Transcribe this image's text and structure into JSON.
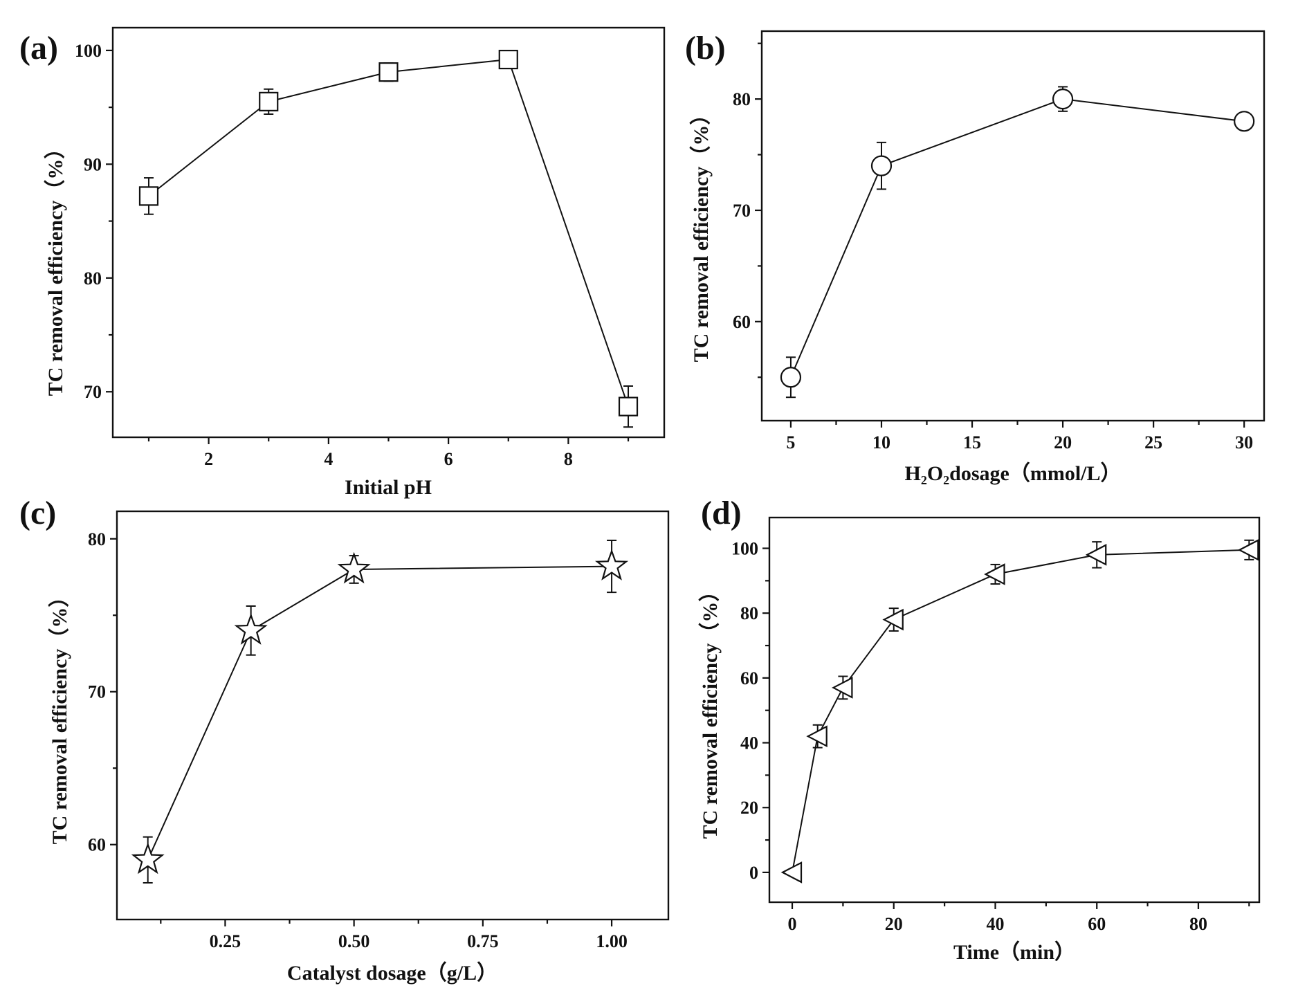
{
  "chart_data": [
    {
      "panel": "(a)",
      "type": "line",
      "xlabel": "Initial pH",
      "ylabel": "TC removal efficiency（%）",
      "xlim": [
        0.4,
        9.6
      ],
      "ylim": [
        66,
        102
      ],
      "xticks": [
        2,
        4,
        6,
        8
      ],
      "yticks": [
        70,
        80,
        90,
        100
      ],
      "marker": "square",
      "series": [
        {
          "name": "TC removal efficiency",
          "x": [
            1,
            3,
            5,
            7,
            9
          ],
          "y": [
            87.2,
            95.5,
            98.1,
            99.2,
            68.7
          ],
          "err": [
            1.6,
            1.1,
            0.8,
            0.7,
            1.8
          ]
        }
      ]
    },
    {
      "panel": "(b)",
      "type": "line",
      "xlabel": "H₂O₂dosage（mmol/L）",
      "ylabel": "TC removal efficiency（%）",
      "xlim": [
        3.4,
        31.1
      ],
      "ylim": [
        51.1,
        86.1
      ],
      "xticks": [
        5,
        10,
        15,
        20,
        25,
        30
      ],
      "yticks": [
        60,
        70,
        80
      ],
      "marker": "circle",
      "series": [
        {
          "name": "TC removal efficiency",
          "x": [
            5,
            10,
            20,
            30
          ],
          "y": [
            55,
            74,
            80,
            78
          ],
          "err": [
            1.8,
            2.1,
            1.1,
            0.7
          ]
        }
      ]
    },
    {
      "panel": "(c)",
      "type": "line",
      "xlabel": "Catalyst dosage（g/L）",
      "ylabel": "TC removal efficiency（%）",
      "xlim": [
        0.04,
        1.11
      ],
      "ylim": [
        55.1,
        81.8
      ],
      "xticks": [
        0.25,
        0.5,
        0.75,
        1.0
      ],
      "xtick_labels": [
        "0.25",
        "0.50",
        "0.75",
        "1.00"
      ],
      "yticks": [
        60,
        70,
        80
      ],
      "marker": "star",
      "series": [
        {
          "name": "TC removal efficiency",
          "x": [
            0.1,
            0.3,
            0.5,
            1.0
          ],
          "y": [
            59,
            74,
            78,
            78.2
          ],
          "err": [
            1.5,
            1.6,
            0.9,
            1.7
          ]
        }
      ]
    },
    {
      "panel": "(d)",
      "type": "line",
      "xlabel": "Time（min）",
      "ylabel": "TC removal efficiency（%）",
      "xlim": [
        -4.5,
        92
      ],
      "ylim": [
        -9.2,
        109.5
      ],
      "xticks": [
        0,
        20,
        40,
        60,
        80
      ],
      "yticks": [
        0,
        20,
        40,
        60,
        80,
        100
      ],
      "marker": "triangle-left",
      "series": [
        {
          "name": "TC removal efficiency",
          "x": [
            0,
            5,
            10,
            20,
            40,
            60,
            90
          ],
          "y": [
            0,
            42,
            57,
            78,
            92,
            98,
            99.5
          ],
          "err": [
            0,
            3.5,
            3.5,
            3.5,
            3,
            4,
            3
          ]
        }
      ]
    }
  ]
}
